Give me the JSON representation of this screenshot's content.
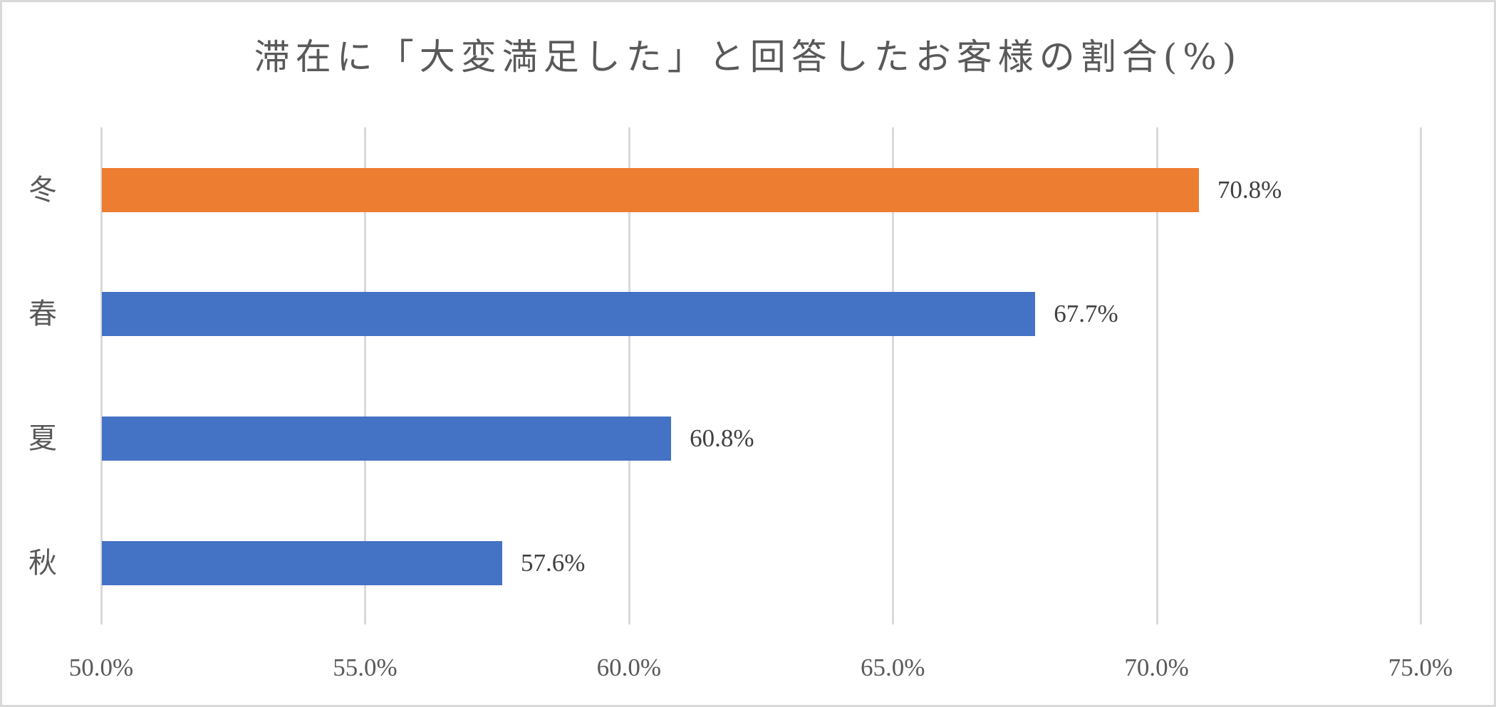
{
  "chart_data": {
    "type": "bar",
    "orientation": "horizontal",
    "title": "滞在に「大変満足した」と回答したお客様の割合(%)",
    "categories": [
      "冬",
      "春",
      "夏",
      "秋"
    ],
    "values": [
      70.8,
      67.7,
      60.8,
      57.6
    ],
    "value_labels": [
      "70.8%",
      "67.7%",
      "60.8%",
      "57.6%"
    ],
    "bar_colors": [
      "#ED7D31",
      "#4472C4",
      "#4472C4",
      "#4472C4"
    ],
    "xlabel": "",
    "ylabel": "",
    "xlim": [
      50,
      75
    ],
    "x_ticks": [
      50,
      55,
      60,
      65,
      70,
      75
    ],
    "x_tick_labels": [
      "50.0%",
      "55.0%",
      "60.0%",
      "65.0%",
      "70.0%",
      "75.0%"
    ],
    "grid": "vertical",
    "legend": "none",
    "highlight_category": "冬"
  },
  "colors": {
    "highlight": "#ED7D31",
    "default": "#4472C4",
    "gridline": "#D9D9D9",
    "text": "#595959",
    "data_label": "#404040"
  }
}
